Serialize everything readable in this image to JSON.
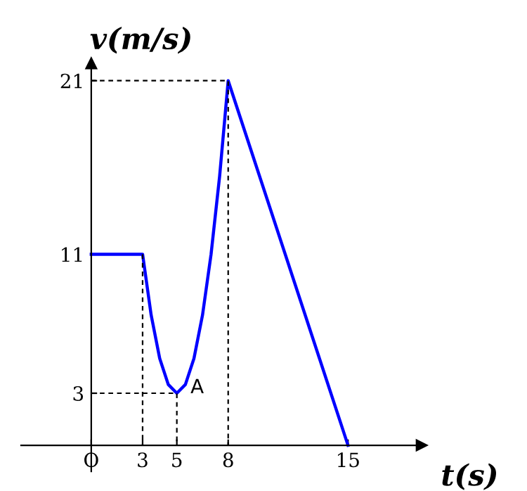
{
  "chart_data": {
    "type": "line",
    "xlabel": "t(s)",
    "ylabel": "v(m/s)",
    "xlim": [
      -4.1,
      19.3
    ],
    "ylim": [
      -1.5,
      22
    ],
    "xticks": [
      {
        "value": 0,
        "label": "O"
      },
      3,
      5,
      8,
      15
    ],
    "yticks": [
      3,
      11,
      21
    ],
    "grid": false,
    "legend": false,
    "marker": "none",
    "series": [
      {
        "color": "#0000ff",
        "line_style": "solid",
        "x": [
          0,
          3,
          3.5,
          4,
          4.5,
          5,
          5.5,
          6,
          6.5,
          7,
          7.5,
          8,
          15
        ],
        "values": [
          11,
          11,
          7.5,
          5,
          3.5,
          3,
          3.5,
          5,
          7.5,
          11,
          15.5,
          21,
          0
        ]
      },
      {
        "color": "#000000",
        "line_style": "dashed",
        "x": [
          3,
          3
        ],
        "values": [
          11,
          0
        ]
      },
      {
        "color": "#000000",
        "line_style": "dashed",
        "x": [
          0,
          5,
          5
        ],
        "values": [
          3,
          3,
          0
        ]
      },
      {
        "color": "#000000",
        "line_style": "dashed",
        "x": [
          0,
          8,
          8
        ],
        "values": [
          21,
          21,
          0
        ]
      }
    ],
    "annotations": [
      {
        "text": "A",
        "x": 5,
        "y": 3
      }
    ]
  }
}
